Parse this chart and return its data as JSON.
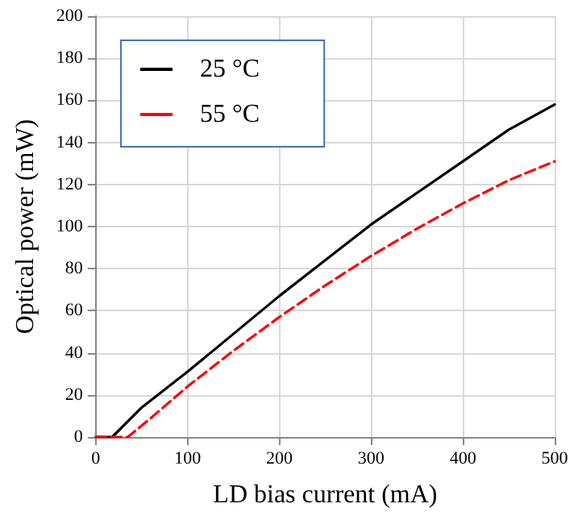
{
  "chart_data": {
    "type": "line",
    "xlabel": "LD bias current (mA)",
    "ylabel": "Optical power (mW)",
    "xlim": [
      0,
      500
    ],
    "xticks": [
      0,
      100,
      200,
      300,
      400,
      500
    ],
    "ylim": [
      0,
      200
    ],
    "yticks": [
      0,
      20,
      40,
      60,
      80,
      100,
      120,
      140,
      160,
      180,
      200
    ],
    "grid": true,
    "legend": "top left",
    "marker": "none",
    "series": [
      {
        "name": "25 °C",
        "color": "#000000",
        "line_style": "solid",
        "x": [
          0,
          18,
          50,
          100,
          150,
          200,
          250,
          300,
          350,
          400,
          450,
          500
        ],
        "values": [
          0,
          0,
          14,
          31,
          49,
          67,
          84,
          101,
          116,
          131,
          146,
          158
        ]
      },
      {
        "name": "55 °C",
        "color": "#ff0000",
        "line_style": "dashed",
        "x": [
          0,
          35,
          60,
          100,
          150,
          200,
          250,
          300,
          350,
          400,
          450,
          500
        ],
        "values": [
          0,
          0,
          9,
          24,
          41,
          57,
          72,
          86,
          99,
          111,
          122,
          131
        ]
      }
    ]
  }
}
